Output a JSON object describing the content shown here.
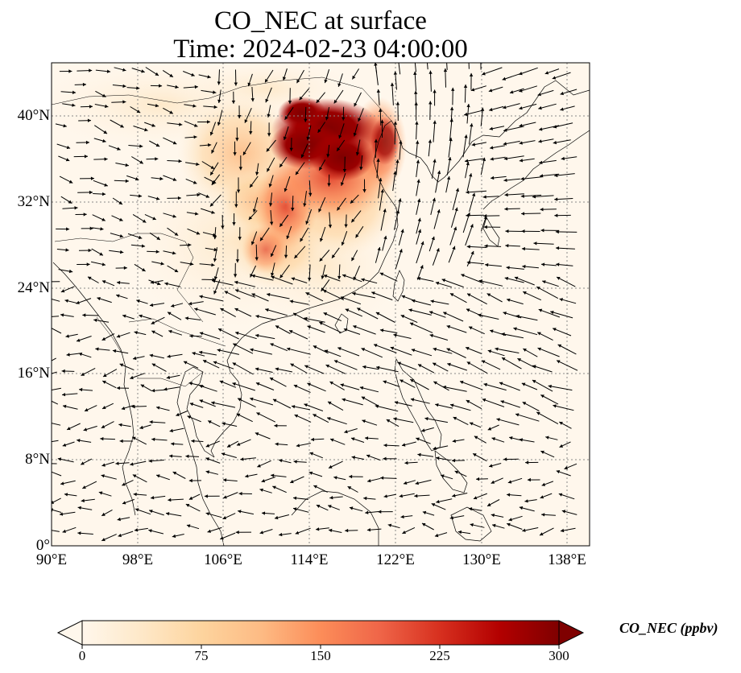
{
  "title": {
    "line1": "CO_NEC at surface",
    "line2": "Time: 2024-02-23 04:00:00"
  },
  "map": {
    "projection": "PlateCarree",
    "lon_range": [
      90,
      140
    ],
    "lat_range": [
      0,
      45
    ],
    "grid": "dotted gray",
    "x_ticks": [
      "90°E",
      "98°E",
      "106°E",
      "114°E",
      "122°E",
      "130°E",
      "138°E"
    ],
    "x_tick_values": [
      90,
      98,
      106,
      114,
      122,
      130,
      138
    ],
    "y_ticks": [
      "0°",
      "8°N",
      "16°N",
      "24°N",
      "32°N",
      "40°N"
    ],
    "y_tick_values": [
      0,
      8,
      16,
      24,
      32,
      40
    ],
    "field": "CO_NEC surface concentration",
    "overlay": "wind vectors (quiver)",
    "hotspot_region": "North China Plain, approx 110–120°E, 33–41°N"
  },
  "colorbar": {
    "label": "CO_NEC (ppbv)",
    "colormap": "OrRd",
    "range": [
      0,
      300
    ],
    "extend": "both",
    "ticks": [
      "0",
      "75",
      "150",
      "225",
      "300"
    ],
    "tick_values": [
      0,
      75,
      150,
      225,
      300
    ],
    "colors": [
      "#fff7ec",
      "#fee8c8",
      "#fdd49e",
      "#fdbb84",
      "#fc8d59",
      "#ef6548",
      "#d7301f",
      "#b30000",
      "#7f0000"
    ]
  }
}
